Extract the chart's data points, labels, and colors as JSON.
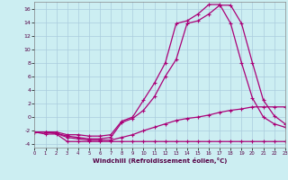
{
  "xlabel": "Windchill (Refroidissement éolien,°C)",
  "xlim": [
    0,
    23
  ],
  "ylim": [
    -4.5,
    17
  ],
  "xticks": [
    0,
    1,
    2,
    3,
    4,
    5,
    6,
    7,
    8,
    9,
    10,
    11,
    12,
    13,
    14,
    15,
    16,
    17,
    18,
    19,
    20,
    21,
    22,
    23
  ],
  "yticks": [
    -4,
    -2,
    0,
    2,
    4,
    6,
    8,
    10,
    12,
    14,
    16
  ],
  "bg_color": "#cceef2",
  "grid_color": "#aaccdd",
  "line_color": "#aa0077",
  "line1_x": [
    0,
    1,
    2,
    3,
    4,
    5,
    6,
    7,
    8,
    9,
    10,
    11,
    12,
    13,
    14,
    15,
    16,
    17,
    18,
    19,
    20,
    21,
    22,
    23
  ],
  "line1_y": [
    -2.2,
    -2.5,
    -2.5,
    -3.6,
    -3.6,
    -3.6,
    -3.6,
    -3.6,
    -3.6,
    -3.6,
    -3.6,
    -3.6,
    -3.6,
    -3.6,
    -3.6,
    -3.6,
    -3.6,
    -3.6,
    -3.6,
    -3.6,
    -3.6,
    -3.6,
    -3.6,
    -3.6
  ],
  "line2_x": [
    0,
    1,
    2,
    3,
    4,
    5,
    6,
    7,
    8,
    9,
    10,
    11,
    12,
    13,
    14,
    15,
    16,
    17,
    18,
    19,
    20,
    21,
    22,
    23
  ],
  "line2_y": [
    -2.2,
    -2.2,
    -2.4,
    -3.0,
    -3.2,
    -3.4,
    -3.4,
    -3.4,
    -3.0,
    -2.6,
    -2.0,
    -1.5,
    -1.0,
    -0.5,
    -0.2,
    0.0,
    0.3,
    0.7,
    1.0,
    1.2,
    1.5,
    1.5,
    1.5,
    1.5
  ],
  "line3_x": [
    0,
    1,
    2,
    3,
    4,
    5,
    6,
    7,
    8,
    9,
    10,
    11,
    12,
    13,
    14,
    15,
    16,
    17,
    18,
    19,
    20,
    21,
    22,
    23
  ],
  "line3_y": [
    -2.2,
    -2.2,
    -2.2,
    -2.6,
    -2.6,
    -2.8,
    -2.8,
    -2.6,
    -0.6,
    0.0,
    2.5,
    5.0,
    8.0,
    13.8,
    14.2,
    15.2,
    16.6,
    16.6,
    13.8,
    8.0,
    2.8,
    0.0,
    -1.0,
    -1.5
  ],
  "line4_x": [
    0,
    1,
    2,
    3,
    4,
    5,
    6,
    7,
    8,
    9,
    10,
    11,
    12,
    13,
    14,
    15,
    16,
    17,
    18,
    19,
    20,
    21,
    22,
    23
  ],
  "line4_y": [
    -2.2,
    -2.2,
    -2.4,
    -2.8,
    -3.0,
    -3.2,
    -3.2,
    -3.0,
    -0.8,
    -0.2,
    1.0,
    3.0,
    6.0,
    8.5,
    13.8,
    14.2,
    15.2,
    16.5,
    16.5,
    13.8,
    8.0,
    2.5,
    0.2,
    -1.0
  ]
}
